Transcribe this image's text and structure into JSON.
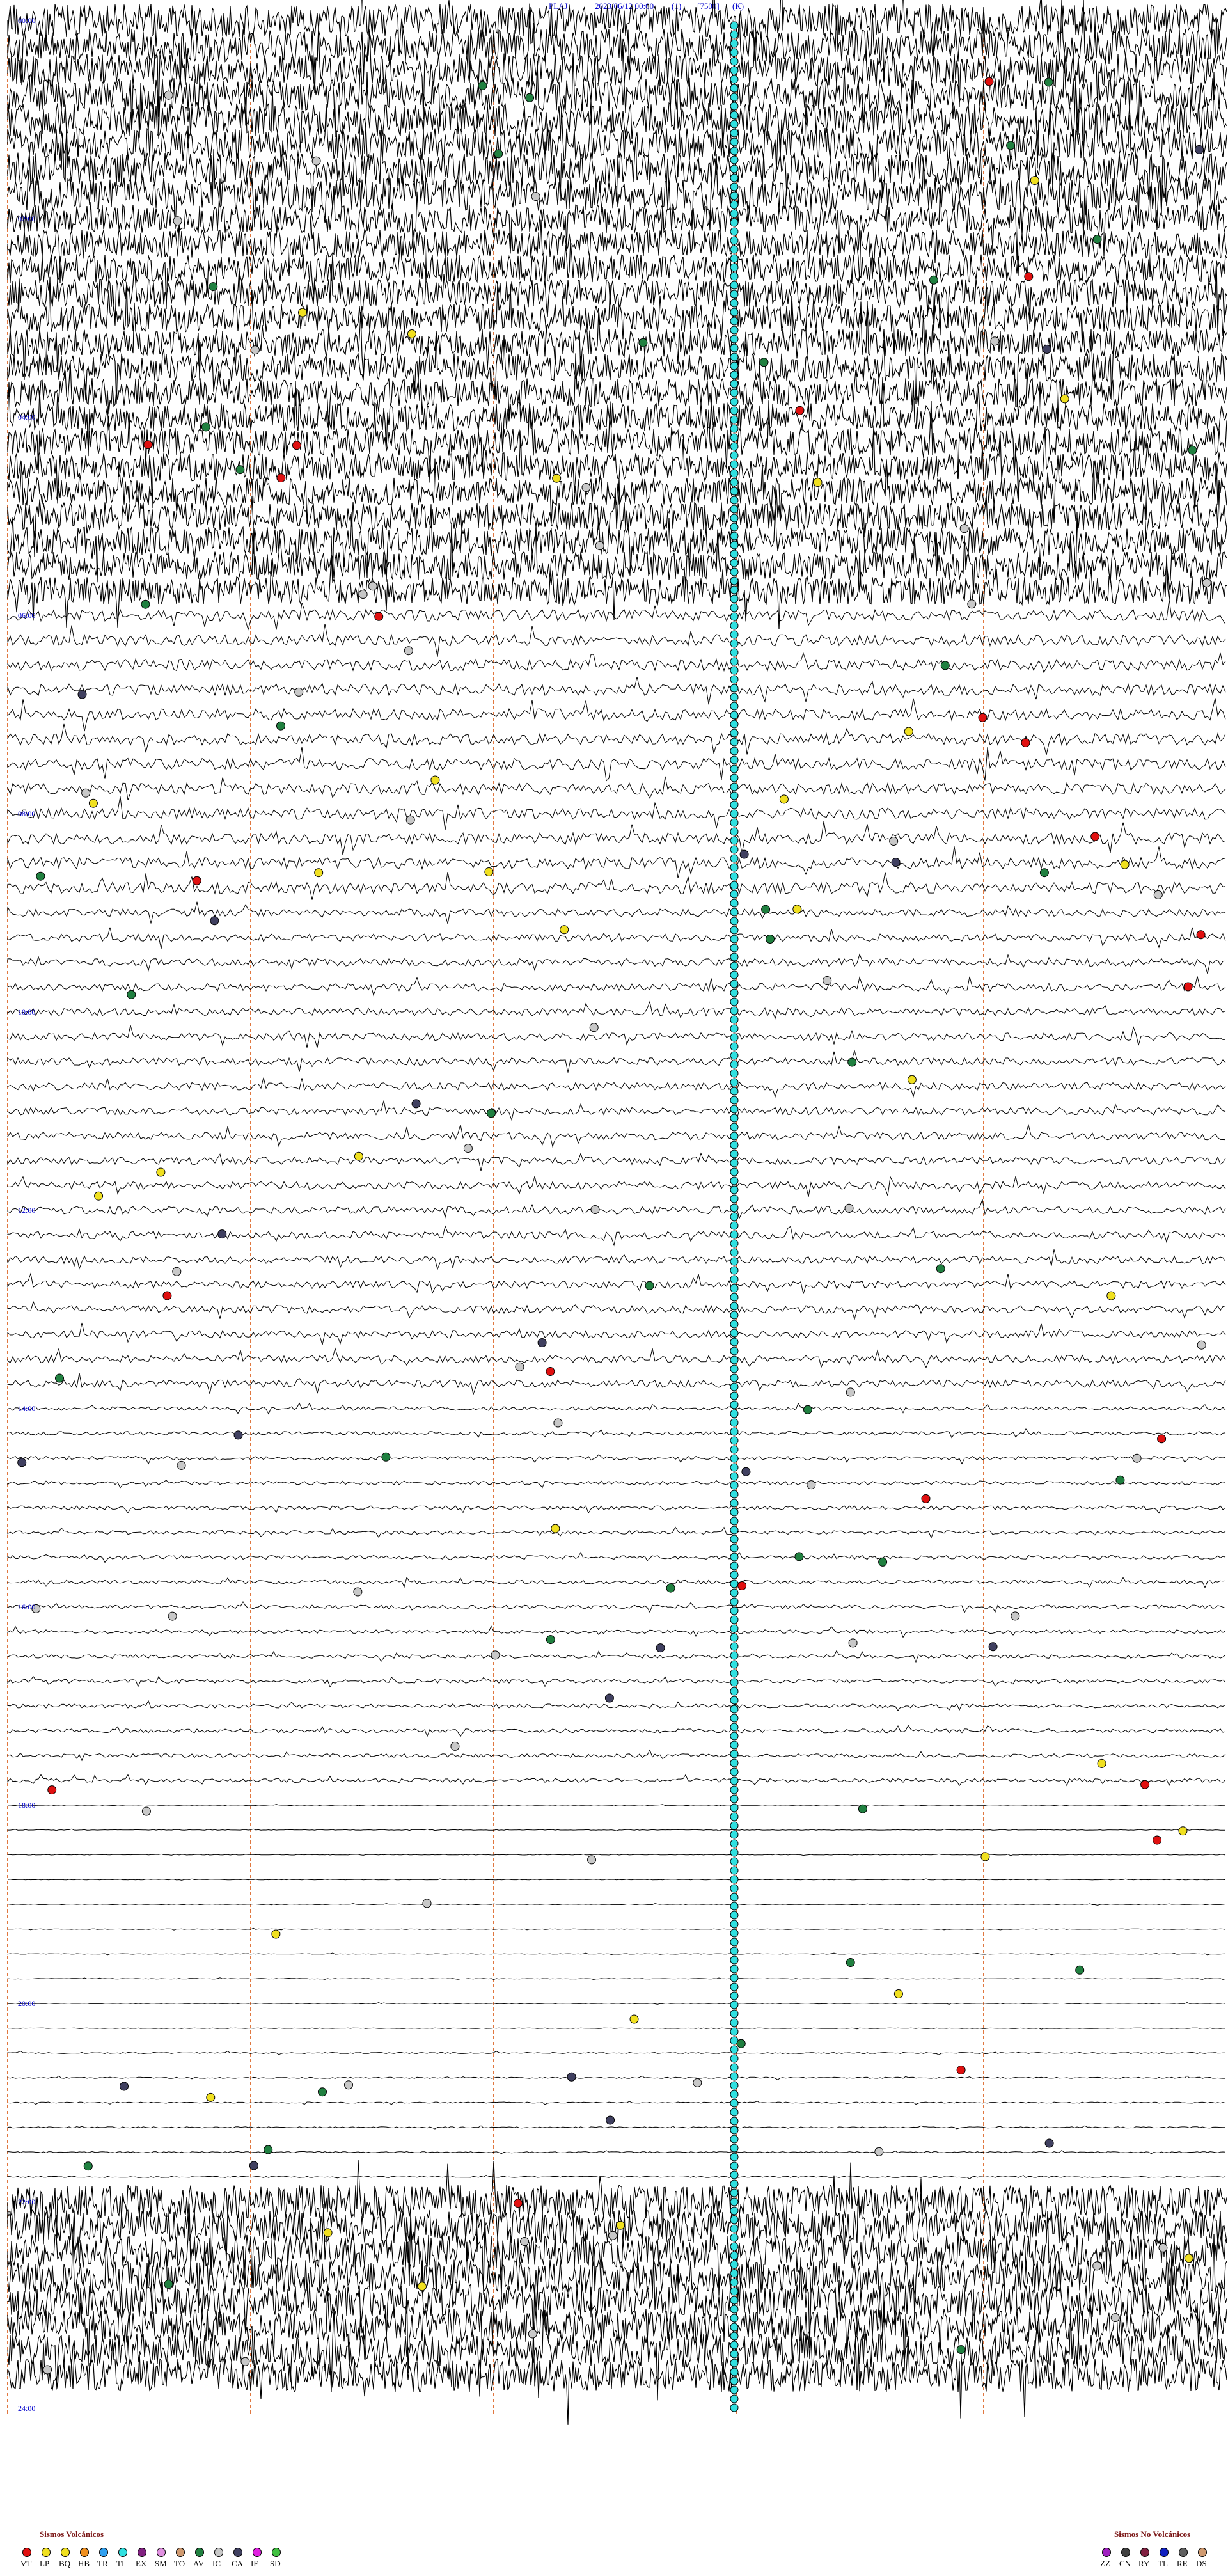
{
  "header": {
    "station": "PLAJ",
    "datetime": "2023/06/12 00:00",
    "channel": "(1)",
    "gain": "[7500]",
    "units": "(K)"
  },
  "chart_data": {
    "type": "helicorder",
    "hours_per_row_label": 2,
    "time_labels": [
      "00:00",
      "02:00",
      "04:00",
      "06:00",
      "08:00",
      "10:00",
      "12:00",
      "14:00",
      "16:00",
      "18:00",
      "20:00",
      "22:00",
      "24:00"
    ],
    "trace_rows": 96,
    "legend_volcanic": {
      "title": "Sismos Volcánicos",
      "items": [
        {
          "code": "VT",
          "color": "#e01010"
        },
        {
          "code": "LP",
          "color": "#f0e020"
        },
        {
          "code": "BQ",
          "color": "#f0e020"
        },
        {
          "code": "HB",
          "color": "#f09020"
        },
        {
          "code": "TR",
          "color": "#30a0f0"
        },
        {
          "code": "TI",
          "color": "#30e0e0"
        },
        {
          "code": "EX",
          "color": "#802080"
        },
        {
          "code": "SM",
          "color": "#e090e0"
        },
        {
          "code": "TO",
          "color": "#d09a70"
        },
        {
          "code": "AV",
          "color": "#208040"
        },
        {
          "code": "IC",
          "color": "#c8c8c8"
        },
        {
          "code": "CA",
          "color": "#404060"
        },
        {
          "code": "IF",
          "color": "#e020e0"
        },
        {
          "code": "SD",
          "color": "#40c040"
        }
      ]
    },
    "legend_non_volcanic": {
      "title": "Sismos No Volcánicos",
      "items": [
        {
          "code": "ZZ",
          "color": "#a020c0"
        },
        {
          "code": "CN",
          "color": "#404040"
        },
        {
          "code": "RY",
          "color": "#802040"
        },
        {
          "code": "TL",
          "color": "#1020c0"
        },
        {
          "code": "RE",
          "color": "#606060"
        },
        {
          "code": "DS",
          "color": "#d09a70"
        }
      ]
    }
  }
}
